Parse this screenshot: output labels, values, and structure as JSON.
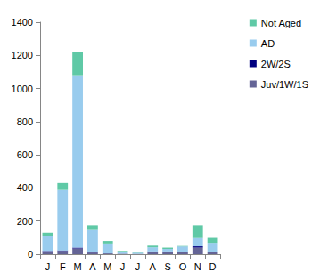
{
  "chart_data": {
    "type": "bar",
    "stacked": true,
    "legend": "right",
    "grid": false,
    "categories": [
      "J",
      "F",
      "M",
      "A",
      "M",
      "J",
      "J",
      "A",
      "S",
      "O",
      "N",
      "D"
    ],
    "series": [
      {
        "name": "Juv/1W/1S",
        "color": "#646496",
        "values": [
          18,
          20,
          35,
          10,
          5,
          3,
          2,
          15,
          15,
          12,
          40,
          12
        ]
      },
      {
        "name": "2W/2S",
        "color": "#000080",
        "values": [
          2,
          3,
          5,
          2,
          0,
          0,
          0,
          2,
          2,
          2,
          8,
          2
        ]
      },
      {
        "name": "AD",
        "color": "#99ccee",
        "values": [
          90,
          365,
          1040,
          135,
          60,
          12,
          7,
          25,
          15,
          33,
          50,
          55
        ]
      },
      {
        "name": "Not Aged",
        "color": "#5fc9a6",
        "values": [
          20,
          42,
          140,
          28,
          15,
          5,
          3,
          10,
          8,
          3,
          77,
          30
        ]
      }
    ],
    "ylim": [
      0,
      1400
    ],
    "yticks": [
      0,
      200,
      400,
      600,
      800,
      1000,
      1200,
      1400
    ]
  }
}
